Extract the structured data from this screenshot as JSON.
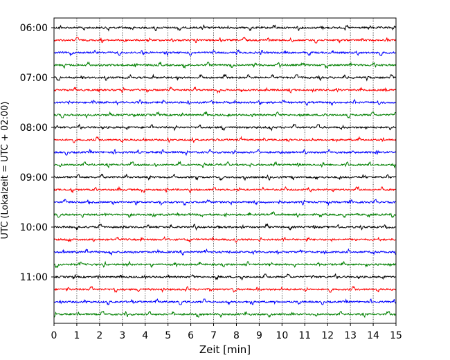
{
  "chart_data": {
    "type": "line",
    "title": "",
    "xlabel": "Zeit  [min]",
    "ylabel": "UTC (Lokalzeit = UTC + 02:00)",
    "xlim": [
      0,
      15
    ],
    "x_ticks": [
      "0",
      "1",
      "2",
      "3",
      "4",
      "5",
      "6",
      "7",
      "8",
      "9",
      "10",
      "11",
      "12",
      "13",
      "14",
      "15"
    ],
    "y_ticks": [
      "06:00",
      "07:00",
      "08:00",
      "09:00",
      "10:00",
      "11:00"
    ],
    "start_time": "06:00",
    "trace_interval_minutes": 15,
    "trace_count": 24,
    "trace_colors": [
      "#000000",
      "#ff0000",
      "#0000ff",
      "#008000"
    ],
    "grid": "vertical dotted lines at each minute",
    "series": [
      {
        "values": [
          0.0,
          0.05,
          -0.04,
          0.03,
          -0.02,
          0.08,
          -0.06,
          0.03,
          0.0,
          -0.04,
          0.05,
          -0.03,
          0.04,
          -0.05,
          0.1,
          -0.02
        ]
      }
    ]
  }
}
